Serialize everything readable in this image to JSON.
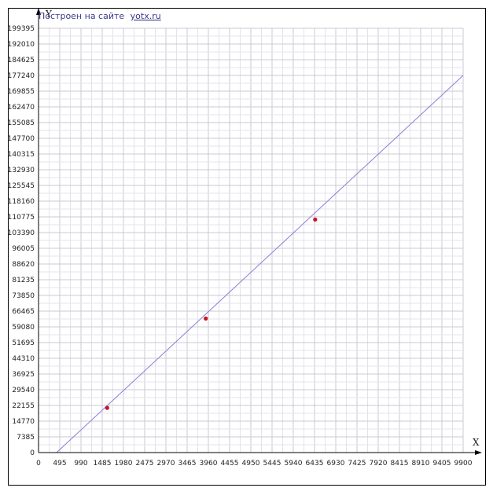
{
  "credit": {
    "prefix": "Построен на сайте",
    "link": "yotx.ru"
  },
  "chart_data": {
    "type": "line",
    "xlabel": "X",
    "ylabel": "Y",
    "xlim": [
      0,
      9900
    ],
    "ylim": [
      0,
      199395
    ],
    "x_ticks": [
      0,
      495,
      990,
      1485,
      1980,
      2475,
      2970,
      3465,
      3960,
      4455,
      4950,
      5445,
      5940,
      6435,
      6930,
      7425,
      7920,
      8415,
      8910,
      9405,
      9900
    ],
    "y_ticks": [
      0,
      7385,
      14770,
      22155,
      29540,
      36925,
      44310,
      51695,
      59080,
      66465,
      73850,
      81235,
      88620,
      96005,
      103390,
      110775,
      118160,
      125545,
      132930,
      140315,
      147700,
      155085,
      162470,
      169855,
      177240,
      184625,
      192010,
      199395
    ],
    "grid": true,
    "series": [
      {
        "x": [
          420,
          9900
        ],
        "y": [
          0,
          177240
        ],
        "color": "#8a7fd6"
      }
    ],
    "points": {
      "x": [
        1600,
        3900,
        6450
      ],
      "y": [
        21000,
        63000,
        109500
      ],
      "color": "#cc1122"
    }
  }
}
